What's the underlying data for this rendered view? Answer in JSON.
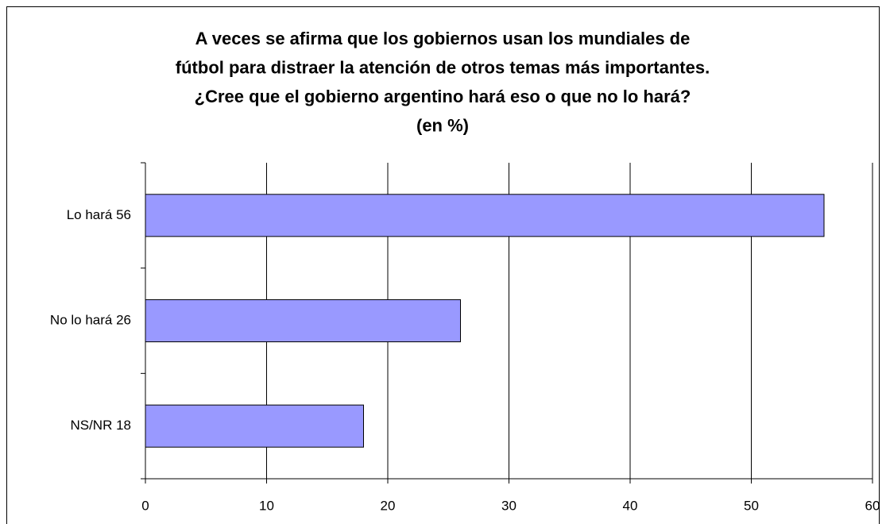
{
  "chart_data": {
    "type": "hbar",
    "title": [
      "A veces se afirma que los gobiernos usan los mundiales de",
      "fútbol para distraer la atención de otros temas más importantes.",
      "¿Cree que el gobierno argentino hará eso o que no lo hará?",
      "(en %)"
    ],
    "categories": [
      "Lo hará  56",
      "No lo hará  26",
      "NS/NR  18"
    ],
    "values": [
      56,
      26,
      18
    ],
    "color": "#9999ff",
    "xlim": [
      0,
      60
    ],
    "xticks": [
      0,
      10,
      20,
      30,
      40,
      50,
      60
    ],
    "grid": true
  }
}
